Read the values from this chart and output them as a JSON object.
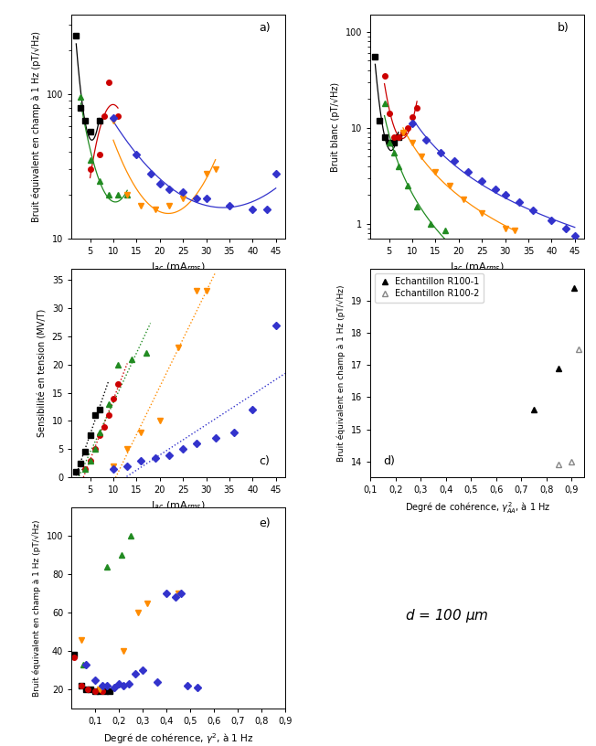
{
  "fig_width": 6.52,
  "fig_height": 8.16,
  "background_color": "#ffffff",
  "panel_a": {
    "label": "a)",
    "ylabel": "Bruit équivalent en champ à 1 Hz (pT/√Hz)",
    "xlabel": "I$_{ac}$ (mA$_{rms}$)",
    "xlim": [
      1,
      47
    ],
    "ylim": [
      10,
      350
    ],
    "xticks": [
      5,
      10,
      15,
      20,
      25,
      30,
      35,
      40,
      45
    ],
    "series": [
      {
        "color": "#000000",
        "marker": "s",
        "markersize": 4,
        "x": [
          2,
          3,
          4,
          5,
          7
        ],
        "y": [
          250,
          80,
          65,
          55,
          65
        ]
      },
      {
        "color": "#cc0000",
        "marker": "o",
        "markersize": 4,
        "x": [
          5,
          7,
          8,
          9,
          11
        ],
        "y": [
          30,
          38,
          70,
          120,
          70
        ]
      },
      {
        "color": "#228B22",
        "marker": "^",
        "markersize": 4,
        "x": [
          3,
          5,
          7,
          9,
          11,
          13
        ],
        "y": [
          95,
          35,
          25,
          20,
          20,
          20
        ]
      },
      {
        "color": "#FF8C00",
        "marker": "v",
        "markersize": 4,
        "x": [
          10,
          13,
          16,
          19,
          22,
          25,
          30,
          32
        ],
        "y": [
          65,
          20,
          17,
          16,
          17,
          19,
          28,
          30
        ]
      },
      {
        "color": "#3333cc",
        "marker": "D",
        "markersize": 4,
        "x": [
          10,
          15,
          18,
          20,
          22,
          25,
          28,
          30,
          35,
          40,
          43,
          45
        ],
        "y": [
          68,
          38,
          28,
          24,
          22,
          21,
          19,
          19,
          17,
          16,
          16,
          28
        ]
      }
    ]
  },
  "panel_b": {
    "label": "b)",
    "ylabel": "Bruit blanc (pT/√Hz)",
    "xlabel": "I$_{ac}$ (mA$_{rms}$)",
    "xlim": [
      1,
      47
    ],
    "ylim": [
      0.7,
      150
    ],
    "xticks": [
      5,
      10,
      15,
      20,
      25,
      30,
      35,
      40,
      45
    ],
    "series": [
      {
        "color": "#000000",
        "marker": "s",
        "markersize": 4,
        "x": [
          2,
          3,
          4,
          5,
          6,
          7
        ],
        "y": [
          55,
          12,
          8,
          7,
          7,
          8
        ]
      },
      {
        "color": "#cc0000",
        "marker": "o",
        "markersize": 4,
        "x": [
          4,
          5,
          6,
          7,
          8,
          9,
          10,
          11
        ],
        "y": [
          35,
          14,
          8,
          8,
          9,
          10,
          13,
          16
        ]
      },
      {
        "color": "#228B22",
        "marker": "^",
        "markersize": 4,
        "x": [
          4,
          5,
          6,
          7,
          9,
          11,
          14,
          17
        ],
        "y": [
          18,
          7,
          5.5,
          4,
          2.5,
          1.5,
          1.0,
          0.85
        ]
      },
      {
        "color": "#FF8C00",
        "marker": "v",
        "markersize": 4,
        "x": [
          8,
          10,
          12,
          15,
          18,
          21,
          25,
          30,
          32
        ],
        "y": [
          9,
          7,
          5,
          3.5,
          2.5,
          1.8,
          1.3,
          0.9,
          0.85
        ]
      },
      {
        "color": "#3333cc",
        "marker": "D",
        "markersize": 4,
        "x": [
          10,
          13,
          16,
          19,
          22,
          25,
          28,
          30,
          33,
          36,
          40,
          43,
          45
        ],
        "y": [
          11,
          7.5,
          5.5,
          4.5,
          3.5,
          2.8,
          2.3,
          2.0,
          1.7,
          1.4,
          1.1,
          0.9,
          0.75
        ]
      }
    ]
  },
  "panel_c": {
    "label": "c)",
    "ylabel": "Sensibilité en tension (MV/T)",
    "xlabel": "I$_{ac}$ (mA$_{rms}$)",
    "xlim": [
      1,
      47
    ],
    "ylim": [
      0,
      37
    ],
    "xticks": [
      5,
      10,
      15,
      20,
      25,
      30,
      35,
      40,
      45
    ],
    "yticks": [
      0,
      5,
      10,
      15,
      20,
      25,
      30,
      35
    ],
    "series": [
      {
        "color": "#000000",
        "marker": "s",
        "markersize": 4,
        "x": [
          2,
          3,
          4,
          5,
          6,
          7
        ],
        "y": [
          1.0,
          2.5,
          4.5,
          7.5,
          11,
          12
        ],
        "fit_x": [
          1,
          9
        ]
      },
      {
        "color": "#cc0000",
        "marker": "o",
        "markersize": 4,
        "x": [
          4,
          5,
          6,
          7,
          8,
          9,
          10,
          11
        ],
        "y": [
          1.5,
          3,
          5,
          7.5,
          9,
          11,
          14,
          16.5
        ],
        "fit_x": [
          2,
          13
        ]
      },
      {
        "color": "#228B22",
        "marker": "^",
        "markersize": 4,
        "x": [
          4,
          5,
          6,
          7,
          9,
          11,
          14,
          17
        ],
        "y": [
          1.5,
          3,
          5,
          8,
          13,
          20,
          21,
          22
        ],
        "fit_x": [
          2,
          18
        ]
      },
      {
        "color": "#FF8C00",
        "marker": "v",
        "markersize": 4,
        "x": [
          10,
          13,
          16,
          20,
          24,
          28,
          30
        ],
        "y": [
          2,
          5,
          8,
          10,
          23,
          33,
          33
        ],
        "fit_x": [
          7,
          32
        ]
      },
      {
        "color": "#3333cc",
        "marker": "D",
        "markersize": 4,
        "x": [
          10,
          13,
          16,
          19,
          22,
          25,
          28,
          32,
          36,
          40,
          45
        ],
        "y": [
          1.5,
          2,
          3,
          3.5,
          4,
          5,
          6,
          7,
          8,
          12,
          27
        ],
        "fit_x": [
          8,
          47
        ]
      }
    ]
  },
  "panel_d": {
    "label": "d)",
    "ylabel": "Bruit équivalent en champ à 1 Hz (pT/√Hz)",
    "xlabel": "Degré de cohérence, $\\gamma_{AA}^{\\,2}$, à 1 Hz",
    "xlim": [
      0.1,
      0.95
    ],
    "ylim": [
      13.5,
      20.0
    ],
    "xticks": [
      0.1,
      0.2,
      0.3,
      0.4,
      0.5,
      0.6,
      0.7,
      0.8,
      0.9
    ],
    "yticks": [
      14,
      15,
      16,
      17,
      18,
      19
    ],
    "legend": [
      "Echantillon R100-1",
      "Echantillon R100-2"
    ],
    "series": [
      {
        "color": "#000000",
        "marker": "^",
        "markersize": 5,
        "filled": true,
        "x": [
          0.75,
          0.85,
          0.91
        ],
        "y": [
          15.6,
          16.9,
          19.4
        ]
      },
      {
        "color": "#888888",
        "marker": "^",
        "markersize": 5,
        "filled": false,
        "x": [
          0.85,
          0.9,
          0.93
        ],
        "y": [
          13.9,
          14.0,
          17.5
        ]
      }
    ]
  },
  "panel_e": {
    "label": "e)",
    "ylabel": "Bruit équivalent en champ à 1 Hz (pT/√Hz)",
    "xlabel": "Degré de cohérence, $\\gamma^2$, à 1 Hz",
    "xlim": [
      0.0,
      0.9
    ],
    "ylim": [
      10,
      115
    ],
    "xticks": [
      0.1,
      0.2,
      0.3,
      0.4,
      0.5,
      0.6,
      0.7,
      0.8,
      0.9
    ],
    "yticks": [
      20,
      40,
      60,
      80,
      100
    ],
    "series": [
      {
        "color": "#000000",
        "marker": "s",
        "markersize": 4,
        "x": [
          0.01,
          0.04,
          0.06,
          0.08,
          0.1,
          0.12,
          0.14,
          0.16
        ],
        "y": [
          38,
          22,
          20,
          20,
          19,
          19,
          19,
          19
        ]
      },
      {
        "color": "#cc0000",
        "marker": "o",
        "markersize": 4,
        "x": [
          0.01,
          0.04,
          0.07,
          0.1,
          0.13
        ],
        "y": [
          37,
          22,
          20,
          19,
          19
        ]
      },
      {
        "color": "#228B22",
        "marker": "^",
        "markersize": 4,
        "x": [
          0.05,
          0.15,
          0.21,
          0.25
        ],
        "y": [
          33,
          84,
          90,
          100
        ]
      },
      {
        "color": "#FF8C00",
        "marker": "v",
        "markersize": 4,
        "x": [
          0.04,
          0.12,
          0.22,
          0.28,
          0.32,
          0.45
        ],
        "y": [
          46,
          20,
          40,
          60,
          65,
          70
        ]
      },
      {
        "color": "#3333cc",
        "marker": "D",
        "markersize": 4,
        "x": [
          0.06,
          0.1,
          0.13,
          0.15,
          0.18,
          0.2,
          0.22,
          0.24,
          0.27,
          0.3,
          0.36,
          0.4,
          0.44,
          0.46,
          0.49,
          0.53
        ],
        "y": [
          33,
          25,
          22,
          22,
          21,
          23,
          22,
          23,
          28,
          30,
          24,
          70,
          68,
          70,
          22,
          21
        ]
      }
    ]
  },
  "text_d": "$d$ = 100 μm"
}
